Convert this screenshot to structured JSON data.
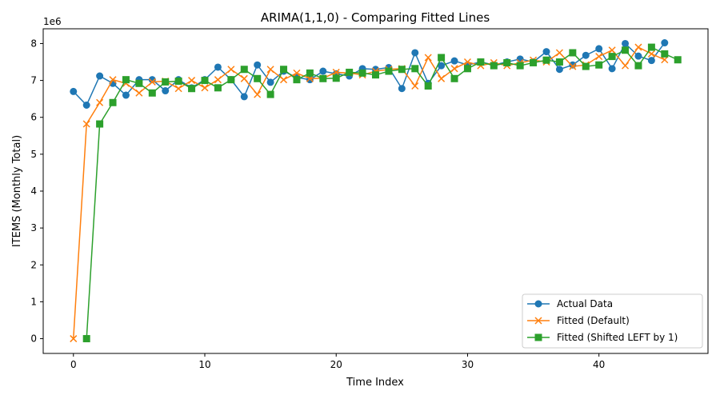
{
  "chart_data": {
    "type": "line",
    "title": "ARIMA(1,1,0) - Comparing Fitted Lines",
    "xlabel": "Time Index",
    "ylabel": "ITEMS (Monthly Total)",
    "y_offset_label": "1e6",
    "xlim": [
      -2.3,
      48.3
    ],
    "ylim": [
      -0.4,
      8.4
    ],
    "x_ticks": [
      0,
      10,
      20,
      30,
      40
    ],
    "y_ticks": [
      0,
      1,
      2,
      3,
      4,
      5,
      6,
      7,
      8
    ],
    "grid": false,
    "legend_position": "bottom-right",
    "series": [
      {
        "name": "Actual Data",
        "color": "#1f77b4",
        "marker": "circle",
        "x": [
          0,
          1,
          2,
          3,
          4,
          5,
          6,
          7,
          8,
          9,
          10,
          11,
          12,
          13,
          14,
          15,
          16,
          17,
          18,
          19,
          20,
          21,
          22,
          23,
          24,
          25,
          26,
          27,
          28,
          29,
          30,
          31,
          32,
          33,
          34,
          35,
          36,
          37,
          38,
          39,
          40,
          41,
          42,
          43,
          44,
          45
        ],
        "y": [
          6.7,
          6.33,
          7.12,
          6.92,
          6.6,
          7.02,
          7.02,
          6.72,
          7.02,
          6.8,
          7.02,
          7.36,
          7.02,
          6.56,
          7.42,
          6.95,
          7.25,
          7.08,
          7.02,
          7.25,
          7.18,
          7.12,
          7.32,
          7.3,
          7.35,
          6.78,
          7.75,
          6.92,
          7.4,
          7.53,
          7.42,
          7.5,
          7.42,
          7.5,
          7.58,
          7.5,
          7.78,
          7.3,
          7.42,
          7.68,
          7.86,
          7.32,
          8.0,
          7.66,
          7.54,
          8.02
        ]
      },
      {
        "name": "Fitted (Default)",
        "color": "#ff7f0e",
        "marker": "x",
        "x": [
          0,
          1,
          2,
          3,
          4,
          5,
          6,
          7,
          8,
          9,
          10,
          11,
          12,
          13,
          14,
          15,
          16,
          17,
          18,
          19,
          20,
          21,
          22,
          23,
          24,
          25,
          26,
          27,
          28,
          29,
          30,
          31,
          32,
          33,
          34,
          35,
          36,
          37,
          38,
          39,
          40,
          41,
          42,
          43,
          44,
          45
        ],
        "y": [
          0.0,
          5.82,
          6.4,
          7.02,
          6.92,
          6.66,
          6.96,
          6.98,
          6.78,
          7.0,
          6.8,
          7.02,
          7.3,
          7.05,
          6.62,
          7.3,
          7.02,
          7.2,
          7.05,
          7.06,
          7.22,
          7.2,
          7.15,
          7.25,
          7.3,
          7.32,
          6.85,
          7.62,
          7.05,
          7.32,
          7.5,
          7.4,
          7.48,
          7.4,
          7.48,
          7.55,
          7.5,
          7.75,
          7.38,
          7.42,
          7.65,
          7.82,
          7.4,
          7.9,
          7.72,
          7.56
        ]
      },
      {
        "name": "Fitted (Shifted LEFT by 1)",
        "color": "#2ca02c",
        "marker": "square",
        "x": [
          1,
          2,
          3,
          4,
          5,
          6,
          7,
          8,
          9,
          10,
          11,
          12,
          13,
          14,
          15,
          16,
          17,
          18,
          19,
          20,
          21,
          22,
          23,
          24,
          25,
          26,
          27,
          28,
          29,
          30,
          31,
          32,
          33,
          34,
          35,
          36,
          37,
          38,
          39,
          40,
          41,
          42,
          43,
          44,
          45,
          46
        ],
        "y": [
          0.0,
          5.82,
          6.4,
          7.02,
          6.92,
          6.66,
          6.96,
          6.98,
          6.78,
          7.0,
          6.8,
          7.02,
          7.3,
          7.05,
          6.62,
          7.3,
          7.02,
          7.2,
          7.05,
          7.06,
          7.22,
          7.2,
          7.15,
          7.25,
          7.3,
          7.32,
          6.85,
          7.62,
          7.05,
          7.32,
          7.5,
          7.4,
          7.48,
          7.4,
          7.48,
          7.55,
          7.5,
          7.75,
          7.38,
          7.42,
          7.65,
          7.82,
          7.4,
          7.9,
          7.72,
          7.56
        ]
      }
    ]
  }
}
